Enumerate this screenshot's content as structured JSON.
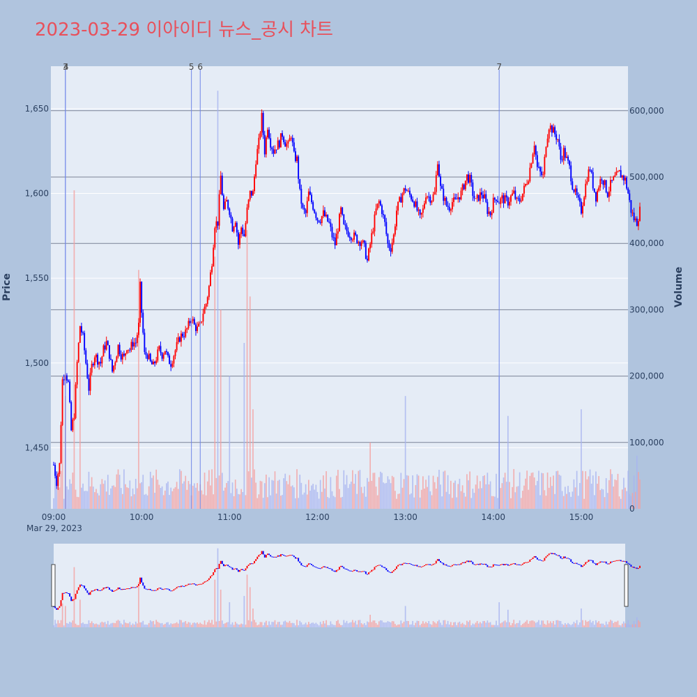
{
  "chart_data": {
    "type": "candlestick",
    "title": "2023-03-29 이아이디 뉴스_공시 차트",
    "ylabel": "Price",
    "y2label": "Volume",
    "date_label": "Mar 29, 2023",
    "x_ticks": [
      "09:00",
      "10:00",
      "11:00",
      "12:00",
      "13:00",
      "14:00",
      "15:00"
    ],
    "price_ticks": [
      1450,
      1500,
      1550,
      1600,
      1650
    ],
    "price_tick_labels": [
      "1,450",
      "1,500",
      "1,550",
      "1,600",
      "1,650"
    ],
    "volume_ticks": [
      0,
      100000,
      200000,
      300000,
      400000,
      500000,
      600000
    ],
    "volume_tick_labels": [
      "0",
      "100,000",
      "200,000",
      "300,000",
      "400,000",
      "500,000",
      "600,000"
    ],
    "ylim": [
      1414,
      1675
    ],
    "y2lim": [
      0,
      667000
    ],
    "xlim_minutes": [
      540,
      930
    ],
    "up_color": "#ff0000",
    "down_color": "#0000ff",
    "news_markers": [
      {
        "label": "3",
        "time": "09:08"
      },
      {
        "label": "4",
        "time": "09:08"
      },
      {
        "label": "5",
        "time": "10:34"
      },
      {
        "label": "6",
        "time": "10:40"
      },
      {
        "label": "7",
        "time": "14:04"
      }
    ],
    "price_path": [
      [
        "09:00",
        1440
      ],
      [
        "09:02",
        1430
      ],
      [
        "09:04",
        1440
      ],
      [
        "09:05",
        1465
      ],
      [
        "09:06",
        1490
      ],
      [
        "09:08",
        1495
      ],
      [
        "09:10",
        1488
      ],
      [
        "09:12",
        1460
      ],
      [
        "09:14",
        1470
      ],
      [
        "09:16",
        1500
      ],
      [
        "09:18",
        1522
      ],
      [
        "09:20",
        1515
      ],
      [
        "09:22",
        1500
      ],
      [
        "09:24",
        1485
      ],
      [
        "09:26",
        1498
      ],
      [
        "09:28",
        1505
      ],
      [
        "09:30",
        1502
      ],
      [
        "09:32",
        1500
      ],
      [
        "09:34",
        1508
      ],
      [
        "09:36",
        1512
      ],
      [
        "09:38",
        1505
      ],
      [
        "09:40",
        1495
      ],
      [
        "09:42",
        1502
      ],
      [
        "09:44",
        1510
      ],
      [
        "09:46",
        1505
      ],
      [
        "09:48",
        1503
      ],
      [
        "09:50",
        1510
      ],
      [
        "09:52",
        1508
      ],
      [
        "09:54",
        1512
      ],
      [
        "09:56",
        1512
      ],
      [
        "09:58",
        1522
      ],
      [
        "09:59",
        1545
      ],
      [
        "10:00",
        1530
      ],
      [
        "10:02",
        1505
      ],
      [
        "10:04",
        1505
      ],
      [
        "10:06",
        1500
      ],
      [
        "10:08",
        1498
      ],
      [
        "10:10",
        1503
      ],
      [
        "10:12",
        1508
      ],
      [
        "10:14",
        1505
      ],
      [
        "10:16",
        1508
      ],
      [
        "10:18",
        1502
      ],
      [
        "10:20",
        1500
      ],
      [
        "10:22",
        1505
      ],
      [
        "10:24",
        1510
      ],
      [
        "10:26",
        1515
      ],
      [
        "10:28",
        1517
      ],
      [
        "10:30",
        1518
      ],
      [
        "10:32",
        1522
      ],
      [
        "10:34",
        1527
      ],
      [
        "10:36",
        1522
      ],
      [
        "10:38",
        1520
      ],
      [
        "10:40",
        1522
      ],
      [
        "10:42",
        1530
      ],
      [
        "10:44",
        1535
      ],
      [
        "10:46",
        1545
      ],
      [
        "10:48",
        1560
      ],
      [
        "10:50",
        1582
      ],
      [
        "10:52",
        1583
      ],
      [
        "10:54",
        1610
      ],
      [
        "10:56",
        1590
      ],
      [
        "10:58",
        1595
      ],
      [
        "11:00",
        1590
      ],
      [
        "11:02",
        1580
      ],
      [
        "11:04",
        1585
      ],
      [
        "11:06",
        1570
      ],
      [
        "11:08",
        1580
      ],
      [
        "11:10",
        1575
      ],
      [
        "11:12",
        1590
      ],
      [
        "11:14",
        1600
      ],
      [
        "11:16",
        1600
      ],
      [
        "11:18",
        1620
      ],
      [
        "11:20",
        1630
      ],
      [
        "11:22",
        1645
      ],
      [
        "11:24",
        1625
      ],
      [
        "11:26",
        1640
      ],
      [
        "11:28",
        1630
      ],
      [
        "11:30",
        1625
      ],
      [
        "11:32",
        1628
      ],
      [
        "11:34",
        1630
      ],
      [
        "11:36",
        1635
      ],
      [
        "11:38",
        1630
      ],
      [
        "11:40",
        1628
      ],
      [
        "11:42",
        1635
      ],
      [
        "11:44",
        1622
      ],
      [
        "11:46",
        1620
      ],
      [
        "11:48",
        1600
      ],
      [
        "11:50",
        1590
      ],
      [
        "11:52",
        1588
      ],
      [
        "11:54",
        1600
      ],
      [
        "11:56",
        1595
      ],
      [
        "11:58",
        1590
      ],
      [
        "12:00",
        1585
      ],
      [
        "12:02",
        1585
      ],
      [
        "12:04",
        1588
      ],
      [
        "12:06",
        1585
      ],
      [
        "12:08",
        1582
      ],
      [
        "12:10",
        1575
      ],
      [
        "12:12",
        1570
      ],
      [
        "12:14",
        1580
      ],
      [
        "12:16",
        1590
      ],
      [
        "12:18",
        1580
      ],
      [
        "12:20",
        1578
      ],
      [
        "12:22",
        1576
      ],
      [
        "12:24",
        1575
      ],
      [
        "12:26",
        1574
      ],
      [
        "12:28",
        1572
      ],
      [
        "12:30",
        1572
      ],
      [
        "12:32",
        1568
      ],
      [
        "12:34",
        1560
      ],
      [
        "12:36",
        1570
      ],
      [
        "12:38",
        1580
      ],
      [
        "12:40",
        1590
      ],
      [
        "12:42",
        1595
      ],
      [
        "12:44",
        1590
      ],
      [
        "12:46",
        1582
      ],
      [
        "12:48",
        1570
      ],
      [
        "12:50",
        1568
      ],
      [
        "12:52",
        1575
      ],
      [
        "12:54",
        1590
      ],
      [
        "12:56",
        1595
      ],
      [
        "12:58",
        1600
      ],
      [
        "13:00",
        1603
      ],
      [
        "13:02",
        1600
      ],
      [
        "13:04",
        1598
      ],
      [
        "13:06",
        1595
      ],
      [
        "13:08",
        1590
      ],
      [
        "13:10",
        1585
      ],
      [
        "13:12",
        1590
      ],
      [
        "13:14",
        1600
      ],
      [
        "13:16",
        1598
      ],
      [
        "13:18",
        1597
      ],
      [
        "13:20",
        1600
      ],
      [
        "13:22",
        1620
      ],
      [
        "13:24",
        1603
      ],
      [
        "13:26",
        1598
      ],
      [
        "13:28",
        1593
      ],
      [
        "13:30",
        1592
      ],
      [
        "13:32",
        1595
      ],
      [
        "13:34",
        1595
      ],
      [
        "13:36",
        1598
      ],
      [
        "13:38",
        1600
      ],
      [
        "13:40",
        1605
      ],
      [
        "13:42",
        1610
      ],
      [
        "13:44",
        1608
      ],
      [
        "13:46",
        1600
      ],
      [
        "13:48",
        1595
      ],
      [
        "13:50",
        1598
      ],
      [
        "13:52",
        1600
      ],
      [
        "13:54",
        1597
      ],
      [
        "13:56",
        1590
      ],
      [
        "13:58",
        1588
      ],
      [
        "14:00",
        1595
      ],
      [
        "14:02",
        1598
      ],
      [
        "14:04",
        1595
      ],
      [
        "14:06",
        1597
      ],
      [
        "14:08",
        1596
      ],
      [
        "14:10",
        1595
      ],
      [
        "14:12",
        1598
      ],
      [
        "14:14",
        1600
      ],
      [
        "14:16",
        1595
      ],
      [
        "14:18",
        1596
      ],
      [
        "14:20",
        1600
      ],
      [
        "14:22",
        1605
      ],
      [
        "14:24",
        1610
      ],
      [
        "14:26",
        1620
      ],
      [
        "14:28",
        1630
      ],
      [
        "14:30",
        1615
      ],
      [
        "14:32",
        1612
      ],
      [
        "14:34",
        1610
      ],
      [
        "14:36",
        1630
      ],
      [
        "14:38",
        1640
      ],
      [
        "14:40",
        1638
      ],
      [
        "14:42",
        1635
      ],
      [
        "14:44",
        1632
      ],
      [
        "14:46",
        1620
      ],
      [
        "14:48",
        1625
      ],
      [
        "14:50",
        1620
      ],
      [
        "14:52",
        1615
      ],
      [
        "14:54",
        1605
      ],
      [
        "14:56",
        1600
      ],
      [
        "14:58",
        1595
      ],
      [
        "15:00",
        1590
      ],
      [
        "15:02",
        1600
      ],
      [
        "15:04",
        1610
      ],
      [
        "15:06",
        1615
      ],
      [
        "15:08",
        1605
      ],
      [
        "15:10",
        1598
      ],
      [
        "15:12",
        1605
      ],
      [
        "15:14",
        1610
      ],
      [
        "15:16",
        1605
      ],
      [
        "15:18",
        1600
      ],
      [
        "15:20",
        1605
      ],
      [
        "15:22",
        1608
      ],
      [
        "15:24",
        1610
      ],
      [
        "15:26",
        1612
      ],
      [
        "15:28",
        1610
      ],
      [
        "15:30",
        1608
      ],
      [
        "15:32",
        1600
      ],
      [
        "15:34",
        1590
      ],
      [
        "15:36",
        1585
      ],
      [
        "15:38",
        1583
      ],
      [
        "15:40",
        1590
      ]
    ],
    "volume_peaks": [
      [
        "09:06",
        190000
      ],
      [
        "09:08",
        170000
      ],
      [
        "09:14",
        480000
      ],
      [
        "09:18",
        220000
      ],
      [
        "09:58",
        360000
      ],
      [
        "10:50",
        380000
      ],
      [
        "10:52",
        630000
      ],
      [
        "10:54",
        300000
      ],
      [
        "11:00",
        200000
      ],
      [
        "11:10",
        250000
      ],
      [
        "11:12",
        420000
      ],
      [
        "11:14",
        320000
      ],
      [
        "11:16",
        150000
      ],
      [
        "12:36",
        100000
      ],
      [
        "13:00",
        170000
      ],
      [
        "14:04",
        200000
      ],
      [
        "14:10",
        140000
      ],
      [
        "15:00",
        150000
      ],
      [
        "15:38",
        80000
      ]
    ]
  },
  "nav_markers": [
    "≡",
    "≡"
  ]
}
